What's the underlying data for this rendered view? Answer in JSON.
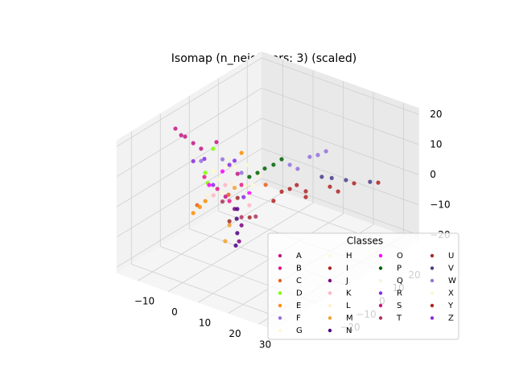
{
  "chart_data": {
    "type": "scatter3d",
    "title": "Isomap (n_neighbors: 3) (scaled)",
    "xlim": [
      -17,
      35
    ],
    "ylim": [
      -25,
      25
    ],
    "zlim": [
      -22,
      22
    ],
    "xticks": [
      {
        "value": -10,
        "label": "−10"
      },
      0,
      10,
      20,
      30
    ],
    "yticks": [
      {
        "value": -20,
        "label": "−20"
      },
      {
        "value": -10,
        "label": "−10"
      },
      0,
      10,
      20
    ],
    "zticks": [
      {
        "value": -20,
        "label": "−20"
      },
      {
        "value": -10,
        "label": "−10"
      },
      0,
      10,
      20
    ],
    "grid": true,
    "legend": "lower right",
    "legend_title": "Classes",
    "series": [
      {
        "name": "A",
        "color": "#c71585",
        "x": [
          -12,
          -8.8,
          -6.1,
          -3.5,
          -10.1
        ],
        "y": [
          -10,
          -10,
          -10,
          -10,
          -10
        ],
        "z": [
          18.9,
          17.4,
          16.2,
          15.3,
          17.4
        ]
      },
      {
        "name": "B",
        "color": "#e6178a",
        "x": [
          -7.7,
          -3.7,
          0.3,
          -12
        ],
        "y": [
          0,
          0,
          0,
          0
        ],
        "z": [
          -5.4,
          -8,
          -1.2,
          -3
        ]
      },
      {
        "name": "C",
        "color": "#e8601c",
        "x": [
          8.3,
          -14.4,
          -4
        ],
        "y": [
          0,
          0,
          0
        ],
        "z": [
          1.7,
          -13.2,
          -6
        ]
      },
      {
        "name": "D",
        "color": "#7fff00",
        "x": [
          -11.7,
          -9.1,
          -10.9
        ],
        "y": [
          0,
          0,
          0
        ],
        "z": [
          -1.5,
          7.4,
          -4.6
        ]
      },
      {
        "name": "E",
        "color": "#ff8c00",
        "x": [
          -15.7,
          -11.7,
          0.3,
          -13.5
        ],
        "y": [
          0,
          0,
          0,
          0
        ],
        "z": [
          -16.3,
          -10.9,
          9.4,
          -13.5
        ]
      },
      {
        "name": "F",
        "color": "#9370db",
        "x": [
          -13.1,
          0.3,
          -6
        ],
        "y": [
          0,
          0,
          0
        ],
        "z": [
          1.9,
          2.8,
          5
        ]
      },
      {
        "name": "G",
        "color": "#fffacd",
        "x": [
          -9,
          1.5,
          -2
        ],
        "y": [
          0,
          0,
          0
        ],
        "z": [
          0,
          -1,
          4
        ]
      },
      {
        "name": "H",
        "color": "#fff8dc",
        "x": [
          -5,
          4,
          -7
        ],
        "y": [
          0,
          0,
          0
        ],
        "z": [
          3,
          0,
          -2
        ]
      },
      {
        "name": "I",
        "color": "#b22222",
        "x": [
          6.7,
          4,
          9
        ],
        "y": [
          10,
          10,
          10
        ],
        "z": [
          -6.1,
          -8,
          -4
        ]
      },
      {
        "name": "J",
        "color": "#800080",
        "x": [
          -0.5,
          0.3,
          -2
        ],
        "y": [
          0,
          0,
          0
        ],
        "z": [
          -20.2,
          -14.6,
          -10
        ]
      },
      {
        "name": "K",
        "color": "#ffb6c1",
        "x": [
          -5.1,
          2.9,
          -9
        ],
        "y": [
          0,
          0,
          0
        ],
        "z": [
          -3.2,
          -7,
          -8
        ]
      },
      {
        "name": "L",
        "color": "#ffefd5",
        "x": [
          -3,
          6,
          -11
        ],
        "y": [
          0,
          0,
          0
        ],
        "z": [
          -2,
          4,
          -9
        ]
      },
      {
        "name": "M",
        "color": "#f0a030",
        "x": [
          -5.1,
          -3.7,
          -2
        ],
        "y": [
          0,
          0,
          0
        ],
        "z": [
          -21.8,
          -16,
          -3
        ]
      },
      {
        "name": "N",
        "color": "#4b0082",
        "x": [
          -1.1,
          -1.1,
          -1.6,
          -1.3
        ],
        "y": [
          0,
          0,
          0,
          0
        ],
        "z": [
          -9.7,
          -17.7,
          -22,
          -13
        ]
      },
      {
        "name": "O",
        "color": "#ff00ff",
        "x": [
          2.9,
          -10.4,
          -6
        ],
        "y": [
          0,
          0,
          0
        ],
        "z": [
          -3,
          -5.1,
          1
        ]
      },
      {
        "name": "P",
        "color": "#006400",
        "x": [
          5.6,
          10.9,
          13.6,
          2.9,
          8
        ],
        "y": [
          0,
          0,
          0,
          0,
          0
        ],
        "z": [
          4.7,
          9.3,
          12.1,
          2.4,
          7
        ]
      },
      {
        "name": "Q",
        "color": "#f5f5dc",
        "x": [
          -4,
          3
        ],
        "y": [
          0,
          0
        ],
        "z": [
          6,
          -4
        ]
      },
      {
        "name": "R",
        "color": "#8a2be2",
        "x": [
          -3.7,
          -15.7,
          1
        ],
        "y": [
          0,
          0,
          0
        ],
        "z": [
          4,
          0.9,
          -5
        ]
      },
      {
        "name": "S",
        "color": "#c71585",
        "x": [
          -8,
          -5,
          -1
        ],
        "y": [
          0,
          0,
          0
        ],
        "z": [
          10,
          -7,
          2
        ]
      },
      {
        "name": "T",
        "color": "#b03060",
        "x": [
          0.3,
          -6,
          5
        ],
        "y": [
          0,
          0,
          0
        ],
        "z": [
          -11.9,
          -9,
          -10
        ]
      },
      {
        "name": "U",
        "color": "#a52a2a",
        "x": [
          -3.7,
          3,
          -1
        ],
        "y": [
          0,
          0,
          0
        ],
        "z": [
          -14.7,
          -11,
          -6
        ]
      },
      {
        "name": "V",
        "color": "#483d8b",
        "x": [
          7.7,
          15.7,
          23.7,
          11
        ],
        "y": [
          20,
          20,
          20,
          20
        ],
        "z": [
          -7.6,
          -5.8,
          -3.5,
          -6.8
        ]
      },
      {
        "name": "W",
        "color": "#9370db",
        "x": [
          6.7,
          13.3,
          18.7,
          9.3,
          16
        ],
        "y": [
          10,
          10,
          10,
          10,
          10
        ],
        "z": [
          1.9,
          6.9,
          10.7,
          1.5,
          8.5
        ]
      },
      {
        "name": "X",
        "color": "#fafad2",
        "x": [
          -6,
          2
        ],
        "y": [
          0,
          0
        ],
        "z": [
          -6,
          6
        ]
      },
      {
        "name": "Y",
        "color": "#b22222",
        "x": [
          26.4,
          18.4,
          10.4,
          2.4,
          1.3,
          12,
          22.7
        ],
        "y": [
          20,
          20,
          20,
          20,
          10,
          10,
          10
        ],
        "z": [
          -2.8,
          -5.9,
          -9.9,
          -14.3,
          -12,
          -6.9,
          -1.2
        ]
      },
      {
        "name": "Z",
        "color": "#8a2be2",
        "x": [
          -9.1,
          -12,
          -2
        ],
        "y": [
          0,
          0,
          0
        ],
        "z": [
          -4.6,
          3,
          6
        ]
      }
    ]
  }
}
